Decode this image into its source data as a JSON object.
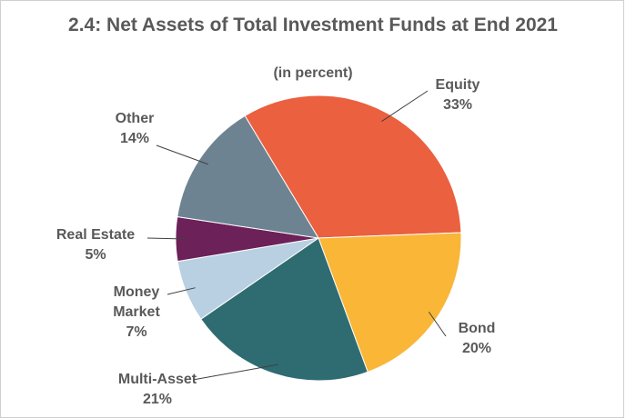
{
  "chart_data": {
    "type": "pie",
    "title": "2.4: Net Assets of Total Investment Funds at End 2021",
    "subtitle": "(in percent)",
    "categories": [
      "Equity",
      "Bond",
      "Multi-Asset",
      "Money Market",
      "Real Estate",
      "Other"
    ],
    "values": [
      33,
      20,
      21,
      7,
      5,
      14
    ],
    "value_labels": [
      "33%",
      "20%",
      "21%",
      "7%",
      "5%",
      "14%"
    ],
    "colors": [
      "#eb603f",
      "#f9b637",
      "#2e6c72",
      "#b9d0e2",
      "#6c2159",
      "#6e8391"
    ]
  }
}
